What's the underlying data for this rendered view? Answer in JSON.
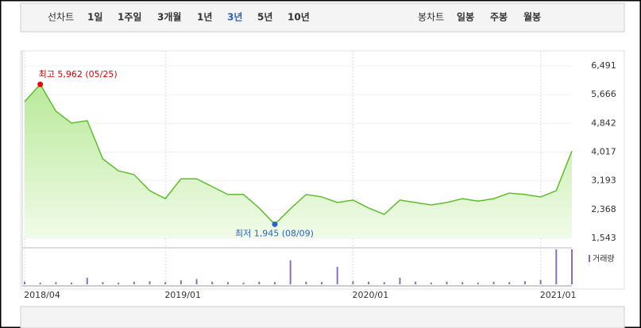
{
  "tabs": {
    "line_label": "선차트",
    "line_periods": [
      "1일",
      "1주일",
      "3개월",
      "1년",
      "3년",
      "5년",
      "10년"
    ],
    "selected": "3년",
    "candle_label": "봉차트",
    "candle_periods": [
      "일봉",
      "주봉",
      "월봉"
    ]
  },
  "chart_data": {
    "type": "area",
    "color": "#5cbf2a",
    "categories": [
      "2018/04",
      "2018/05",
      "2018/06",
      "2018/07",
      "2018/08",
      "2018/09",
      "2018/10",
      "2018/11",
      "2018/12",
      "2019/01",
      "2019/02",
      "2019/03",
      "2019/04",
      "2019/05",
      "2019/06",
      "2019/07",
      "2019/08",
      "2019/09",
      "2019/10",
      "2019/11",
      "2019/12",
      "2020/01",
      "2020/02",
      "2020/03",
      "2020/04",
      "2020/05",
      "2020/06",
      "2020/07",
      "2020/08",
      "2020/09",
      "2020/10",
      "2020/11",
      "2020/12",
      "2021/01",
      "2021/02",
      "2021/03"
    ],
    "values": [
      5465,
      5962,
      5191,
      4850,
      4920,
      3820,
      3480,
      3370,
      2910,
      2680,
      3250,
      3250,
      3025,
      2800,
      2800,
      2410,
      1945,
      2390,
      2800,
      2730,
      2570,
      2640,
      2410,
      2230,
      2640,
      2570,
      2500,
      2570,
      2680,
      2610,
      2680,
      2840,
      2800,
      2730,
      2910,
      4050
    ],
    "annotations": {
      "high": "최고 5,962 (05/25)",
      "low": "최저 1,945 (08/09)"
    },
    "ylim": [
      1543,
      6491
    ],
    "yticks": [
      {
        "value": 1543,
        "label": "1,543"
      },
      {
        "value": 2368,
        "label": "2,368"
      },
      {
        "value": 3193,
        "label": "3,193"
      },
      {
        "value": 4017,
        "label": "4,017"
      },
      {
        "value": 4842,
        "label": "4,842"
      },
      {
        "value": 5666,
        "label": "5,666"
      },
      {
        "value": 6491,
        "label": "6,491"
      }
    ],
    "xticks": [
      "2018/04",
      "2019/01",
      "2020/01",
      "2021/01"
    ],
    "volume": {
      "name": "거래량",
      "color": "#8a6fb8",
      "values": [
        6,
        4,
        5,
        4,
        15,
        5,
        4,
        6,
        7,
        5,
        9,
        12,
        6,
        5,
        4,
        6,
        5,
        55,
        6,
        5,
        40,
        7,
        6,
        5,
        15,
        6,
        4,
        6,
        5,
        4,
        6,
        5,
        7,
        10,
        80,
        80
      ]
    }
  }
}
